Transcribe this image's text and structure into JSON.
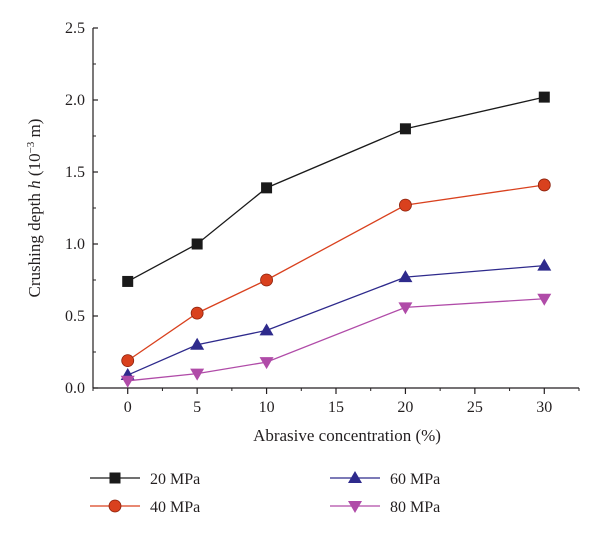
{
  "chart_data": {
    "type": "line",
    "xlabel": "Abrasive concentration (%)",
    "ylabel": {
      "prefix": "Crushing depth ",
      "symbol": "h",
      "unit_open": " (10",
      "unit_exp": "−3",
      "unit_close": " m)"
    },
    "xlim": [
      -2.5,
      32.5
    ],
    "ylim": [
      0,
      2.5
    ],
    "x_ticks": [
      "0",
      "5",
      "10",
      "15",
      "20",
      "25",
      "30"
    ],
    "y_ticks": [
      "0.0",
      "0.5",
      "1.0",
      "1.5",
      "2.0",
      "2.5"
    ],
    "x": [
      0,
      5,
      10,
      20,
      30
    ],
    "grid": false,
    "legend_position": "bottom",
    "series": [
      {
        "name": "20 MPa",
        "color": "#1a1a1a",
        "marker": "square",
        "values": [
          0.74,
          1.0,
          1.39,
          1.8,
          2.02
        ]
      },
      {
        "name": "40 MPa",
        "color": "#d9411e",
        "marker": "circle",
        "values": [
          0.19,
          0.52,
          0.75,
          1.27,
          1.41
        ]
      },
      {
        "name": "60 MPa",
        "color": "#2e2a8c",
        "marker": "triangle-up",
        "values": [
          0.09,
          0.3,
          0.4,
          0.77,
          0.85
        ]
      },
      {
        "name": "80 MPa",
        "color": "#b04ba8",
        "marker": "triangle-down",
        "values": [
          0.05,
          0.1,
          0.18,
          0.56,
          0.62
        ]
      }
    ]
  }
}
